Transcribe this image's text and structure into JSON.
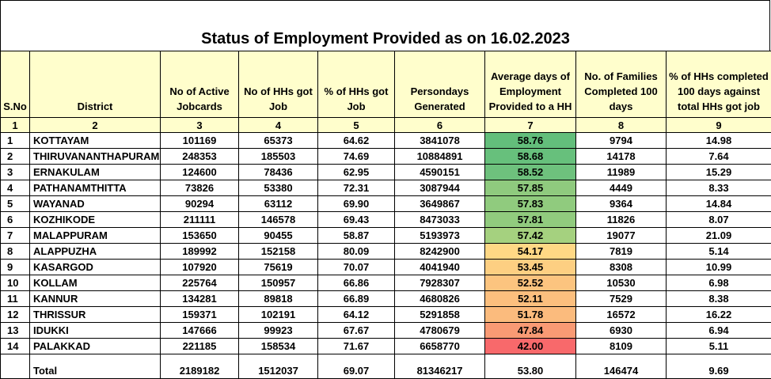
{
  "title": "Status of Employment Provided as on 16.02.2023",
  "headers": [
    "S.No",
    "District",
    "No of Active Jobcards",
    "No of HHs got Job",
    "% of HHs got Job",
    "Persondays Generated",
    "Average days of Employment Provided to a HH",
    "No. of Families Completed 100 days",
    "% of HHs completed 100 days against total HHs got job"
  ],
  "column_numbers": [
    "1",
    "2",
    "3",
    "4",
    "5",
    "6",
    "7",
    "8",
    "9"
  ],
  "rows": [
    {
      "sno": "1",
      "district": "KOTTAYAM",
      "jobcards": "101169",
      "hhs_job": "65373",
      "pct_job": "64.62",
      "persondays": "3841078",
      "avg_days": "58.76",
      "families_100": "9794",
      "pct_100": "14.98",
      "color": "#63be7b"
    },
    {
      "sno": "2",
      "district": "THIRUVANANTHAPURAM",
      "jobcards": "248353",
      "hhs_job": "185503",
      "pct_job": "74.69",
      "persondays": "10884891",
      "avg_days": "58.68",
      "families_100": "14178",
      "pct_100": "7.64",
      "color": "#67c07c"
    },
    {
      "sno": "3",
      "district": "ERNAKULAM",
      "jobcards": "124600",
      "hhs_job": "78436",
      "pct_job": "62.95",
      "persondays": "4590151",
      "avg_days": "58.52",
      "families_100": "11989",
      "pct_100": "15.29",
      "color": "#6ec17d"
    },
    {
      "sno": "4",
      "district": "PATHANAMTHITTA",
      "jobcards": "73826",
      "hhs_job": "53380",
      "pct_job": "72.31",
      "persondays": "3087944",
      "avg_days": "57.85",
      "families_100": "4449",
      "pct_100": "8.33",
      "color": "#8fca7e"
    },
    {
      "sno": "5",
      "district": "WAYANAD",
      "jobcards": "90294",
      "hhs_job": "63112",
      "pct_job": "69.90",
      "persondays": "3649867",
      "avg_days": "57.83",
      "families_100": "9364",
      "pct_100": "14.84",
      "color": "#90cb7e"
    },
    {
      "sno": "6",
      "district": "KOZHIKODE",
      "jobcards": "211111",
      "hhs_job": "146578",
      "pct_job": "69.43",
      "persondays": "8473033",
      "avg_days": "57.81",
      "families_100": "11826",
      "pct_100": "8.07",
      "color": "#91cb7e"
    },
    {
      "sno": "7",
      "district": "MALAPPURAM",
      "jobcards": "153650",
      "hhs_job": "90455",
      "pct_job": "58.87",
      "persondays": "5193973",
      "avg_days": "57.42",
      "families_100": "19077",
      "pct_100": "21.09",
      "color": "#a5d17f"
    },
    {
      "sno": "8",
      "district": "ALAPPUZHA",
      "jobcards": "189992",
      "hhs_job": "152158",
      "pct_job": "80.09",
      "persondays": "8242900",
      "avg_days": "54.17",
      "families_100": "7819",
      "pct_100": "5.14",
      "color": "#ffd885"
    },
    {
      "sno": "9",
      "district": "KASARGOD",
      "jobcards": "107920",
      "hhs_job": "75619",
      "pct_job": "70.07",
      "persondays": "4041940",
      "avg_days": "53.45",
      "families_100": "8308",
      "pct_100": "10.99",
      "color": "#fdcf82"
    },
    {
      "sno": "10",
      "district": "KOLLAM",
      "jobcards": "225764",
      "hhs_job": "150957",
      "pct_job": "66.86",
      "persondays": "7928307",
      "avg_days": "52.52",
      "families_100": "10530",
      "pct_100": "6.98",
      "color": "#fcc47f"
    },
    {
      "sno": "11",
      "district": "KANNUR",
      "jobcards": "134281",
      "hhs_job": "89818",
      "pct_job": "66.89",
      "persondays": "4680826",
      "avg_days": "52.11",
      "families_100": "7529",
      "pct_100": "8.38",
      "color": "#fcbf7e"
    },
    {
      "sno": "12",
      "district": "THRISSUR",
      "jobcards": "159371",
      "hhs_job": "102191",
      "pct_job": "64.12",
      "persondays": "5291858",
      "avg_days": "51.78",
      "families_100": "16572",
      "pct_100": "16.22",
      "color": "#fbbb7d"
    },
    {
      "sno": "13",
      "district": "IDUKKI",
      "jobcards": "147666",
      "hhs_job": "99923",
      "pct_job": "67.67",
      "persondays": "4780679",
      "avg_days": "47.84",
      "families_100": "6930",
      "pct_100": "6.94",
      "color": "#f99a74"
    },
    {
      "sno": "14",
      "district": "PALAKKAD",
      "jobcards": "221185",
      "hhs_job": "158534",
      "pct_job": "71.67",
      "persondays": "6658770",
      "avg_days": "42.00",
      "families_100": "8109",
      "pct_100": "5.11",
      "color": "#f8696b"
    }
  ],
  "total": {
    "label": "Total",
    "jobcards": "2189182",
    "hhs_job": "1512037",
    "pct_job": "69.07",
    "persondays": "81346217",
    "avg_days": "53.80",
    "families_100": "146474",
    "pct_100": "9.69"
  }
}
